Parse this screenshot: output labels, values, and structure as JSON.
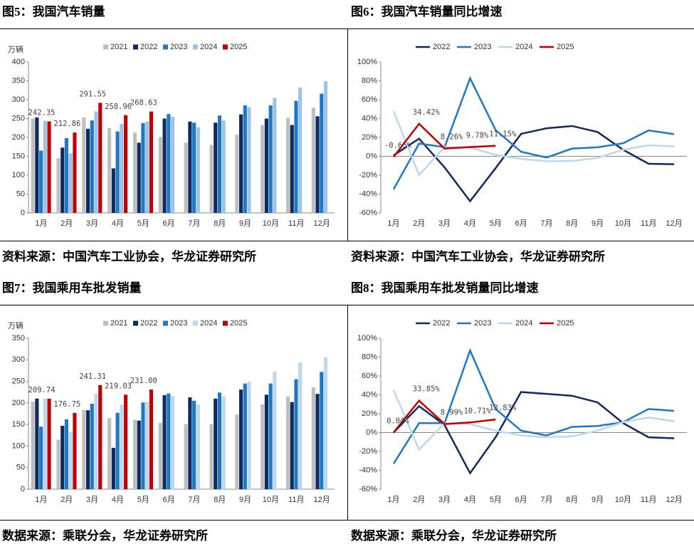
{
  "chart_data": [
    {
      "type": "bar",
      "title": "图5：我国汽车销量",
      "source": "资料来源：中国汽车工业协会，华龙证券研究所",
      "y_label": "万辆",
      "categories": [
        "1月",
        "2月",
        "3月",
        "4月",
        "5月",
        "6月",
        "7月",
        "8月",
        "9月",
        "10月",
        "11月",
        "12月"
      ],
      "ylim": [
        0,
        400
      ],
      "yticks": [
        0,
        50,
        100,
        150,
        200,
        250,
        300,
        350,
        400
      ],
      "series": [
        {
          "name": "2021",
          "color": "#bfbfbf",
          "values": [
            250,
            145,
            253,
            225,
            213,
            201,
            186,
            180,
            207,
            233,
            252,
            279
          ]
        },
        {
          "name": "2022",
          "color": "#0e2a5e",
          "values": [
            253,
            173,
            223,
            118,
            186,
            250,
            242,
            239,
            261,
            250,
            233,
            256
          ]
        },
        {
          "name": "2023",
          "color": "#1f78c1",
          "values": [
            165,
            198,
            245,
            216,
            238,
            262,
            239,
            258,
            285,
            285,
            297,
            316
          ]
        },
        {
          "name": "2024",
          "color": "#9dc3e6",
          "values": [
            244,
            158,
            269,
            236,
            242,
            255,
            227,
            245,
            280,
            305,
            332,
            349
          ]
        },
        {
          "name": "2025",
          "color": "#c00000",
          "values": [
            242.35,
            212.86,
            291.55,
            258.96,
            268.63,
            null,
            null,
            null,
            null,
            null,
            null,
            null
          ],
          "value_labels": [
            "242.35",
            "212.86",
            "291.55",
            "258.96",
            "268.63",
            null,
            null,
            null,
            null,
            null,
            null,
            null
          ]
        }
      ]
    },
    {
      "type": "line",
      "title": "图6：我国汽车销量同比增速",
      "source": "资料来源：中国汽车工业协会，华龙证券研究所",
      "categories": [
        "1月",
        "2月",
        "3月",
        "4月",
        "5月",
        "6月",
        "7月",
        "8月",
        "9月",
        "10月",
        "11月",
        "12月"
      ],
      "ylim": [
        -60,
        100
      ],
      "yticks": [
        {
          "value": -60,
          "label": "-60%"
        },
        {
          "value": -40,
          "label": "-40%"
        },
        {
          "value": -20,
          "label": "-20%"
        },
        {
          "value": 0,
          "label": "0%"
        },
        {
          "value": 20,
          "label": "20%"
        },
        {
          "value": 40,
          "label": "40%"
        },
        {
          "value": 60,
          "label": "60%"
        },
        {
          "value": 80,
          "label": "80%"
        },
        {
          "value": 100,
          "label": "100%"
        }
      ],
      "series": [
        {
          "name": "2022",
          "color": "#0e2a5e",
          "values": [
            1,
            18.7,
            -11.7,
            -47.6,
            -12.6,
            23.8,
            29.7,
            32.1,
            25.7,
            6.9,
            -7.9,
            -8.4
          ]
        },
        {
          "name": "2023",
          "color": "#1f78c1",
          "values": [
            -35,
            13.5,
            9.7,
            82.7,
            27.9,
            4.8,
            -1.3,
            8.2,
            9.5,
            13.8,
            27.4,
            23.5
          ]
        },
        {
          "name": "2024",
          "color": "#bdd7ee",
          "values": [
            47.9,
            -19.9,
            9.9,
            9.3,
            1.5,
            -2.7,
            -5.2,
            -5,
            -1.7,
            7,
            11.7,
            10.5
          ]
        },
        {
          "name": "2025",
          "color": "#c00000",
          "values": [
            -0.65,
            34.42,
            8.26,
            9.78,
            11.15,
            null,
            null,
            null,
            null,
            null,
            null,
            null
          ],
          "value_labels": [
            "-0.65%",
            "34.42%",
            "8.26%",
            "9.78%",
            "11.15%",
            null,
            null,
            null,
            null,
            null,
            null,
            null
          ]
        }
      ]
    },
    {
      "type": "bar",
      "title": "图7：我国乘用车批发销量",
      "source": "数据来源：乘联分会，华龙证券研究所",
      "y_label": "万辆",
      "categories": [
        "1月",
        "2月",
        "3月",
        "4月",
        "5月",
        "6月",
        "7月",
        "8月",
        "9月",
        "10月",
        "11月",
        "12月"
      ],
      "ylim": [
        0,
        350
      ],
      "yticks": [
        0,
        50,
        100,
        150,
        200,
        250,
        300,
        350
      ],
      "series": [
        {
          "name": "2021",
          "color": "#bfbfbf",
          "values": [
            203,
            115,
            184,
            165,
            161,
            154,
            151,
            151,
            173,
            197,
            215,
            236
          ]
        },
        {
          "name": "2022",
          "color": "#0e2a5e",
          "values": [
            210,
            147,
            183,
            96,
            159,
            218,
            213,
            210,
            231,
            219,
            202,
            221
          ]
        },
        {
          "name": "2023",
          "color": "#1f78c1",
          "values": [
            145,
            162,
            198,
            177,
            201,
            222,
            205,
            224,
            245,
            245,
            255,
            272
          ]
        },
        {
          "name": "2024",
          "color": "#bdd7ee",
          "values": [
            210,
            133,
            221,
            196,
            203,
            216,
            196,
            215,
            249,
            273,
            294,
            306
          ]
        },
        {
          "name": "2025",
          "color": "#c00000",
          "values": [
            209.74,
            176.75,
            241.31,
            219.03,
            231.0,
            null,
            null,
            null,
            null,
            null,
            null,
            null
          ],
          "value_labels": [
            "209.74",
            "176.75",
            "241.31",
            "219.03",
            "231.00",
            null,
            null,
            null,
            null,
            null,
            null,
            null
          ]
        }
      ]
    },
    {
      "type": "line",
      "title": "图8：我国乘用车批发销量同比增速",
      "source": "数据来源：乘联分会，华龙证券研究所",
      "categories": [
        "1月",
        "2月",
        "3月",
        "4月",
        "5月",
        "6月",
        "7月",
        "8月",
        "9月",
        "10月",
        "11月",
        "12月"
      ],
      "ylim": [
        -60,
        100
      ],
      "yticks": [
        {
          "value": -60,
          "label": "-60%"
        },
        {
          "value": -40,
          "label": "-40%"
        },
        {
          "value": -20,
          "label": "-20%"
        },
        {
          "value": 0,
          "label": "0%"
        },
        {
          "value": 20,
          "label": "20%"
        },
        {
          "value": 40,
          "label": "40%"
        },
        {
          "value": 60,
          "label": "60%"
        },
        {
          "value": 80,
          "label": "80%"
        },
        {
          "value": 100,
          "label": "100%"
        }
      ],
      "series": [
        {
          "name": "2022",
          "color": "#0e2a5e",
          "values": [
            0,
            28,
            8,
            -43,
            -5,
            43,
            41,
            39,
            32,
            10,
            -5,
            -6
          ]
        },
        {
          "name": "2023",
          "color": "#1f78c1",
          "values": [
            -33,
            10,
            10,
            87,
            25,
            2,
            -3,
            6,
            7,
            11,
            25,
            23
          ]
        },
        {
          "name": "2024",
          "color": "#bdd7ee",
          "values": [
            45,
            -18,
            10,
            9,
            2,
            -3,
            -5,
            -4,
            2,
            11,
            16,
            12
          ]
        },
        {
          "name": "2025",
          "color": "#c00000",
          "values": [
            0.04,
            33.85,
            8.99,
            10.71,
            13.83,
            null,
            null,
            null,
            null,
            null,
            null,
            null
          ],
          "value_labels": [
            "0.04%",
            "33.85%",
            "8.99%",
            "10.71%",
            "13.83%",
            null,
            null,
            null,
            null,
            null,
            null,
            null
          ]
        }
      ]
    }
  ]
}
